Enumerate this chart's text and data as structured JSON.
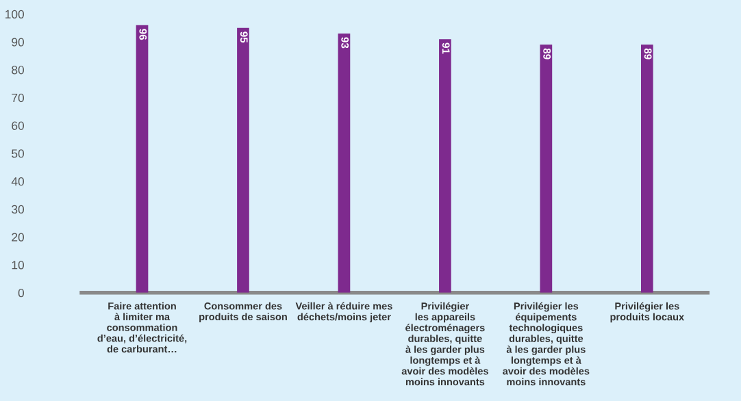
{
  "chart_data": {
    "type": "bar",
    "categories": [
      "Faire attention\nà limiter ma\nconsommation\nd’eau, d’électricité,\nde carburant…",
      "Consommer des\nproduits de saison",
      "Veiller à réduire mes\ndéchets/moins jeter",
      "Privilégier\nles appareils\nélectroménagers\ndurables, quitte\nà les garder plus\nlongtemps et à\navoir des modèles\nmoins innovants",
      "Privilégier les\néquipements\ntechnologiques\ndurables, quitte\nà les garder plus\nlongtemps et à\navoir des modèles\nmoins innovants",
      "Privilégier les\nproduits locaux"
    ],
    "values": [
      96,
      95,
      93,
      91,
      89,
      89
    ],
    "color": "#7e2a8e",
    "ylim": [
      0,
      100
    ],
    "yticks": [
      0,
      10,
      20,
      30,
      40,
      50,
      60,
      70,
      80,
      90,
      100
    ],
    "data_labels": true,
    "grid": false,
    "legend": false
  }
}
